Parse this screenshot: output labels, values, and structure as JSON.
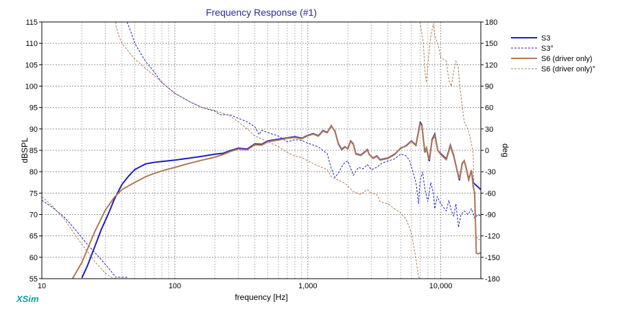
{
  "app": {
    "brand": "XSim"
  },
  "chart_data": {
    "type": "line",
    "title": "Frequency Response (#1)",
    "xlabel": "frequency [Hz]",
    "ylabel": "dBSPL",
    "y2label": "deg",
    "xscale": "log",
    "xlim": [
      10,
      20000
    ],
    "ylim": [
      55,
      115
    ],
    "y2lim": [
      -180,
      180
    ],
    "grid": true,
    "legend_position": "right",
    "x_ticks": [
      {
        "value": 10,
        "label": "10"
      },
      {
        "value": 100,
        "label": "100"
      },
      {
        "value": 1000,
        "label": "1,000"
      },
      {
        "value": 10000,
        "label": "10,000"
      }
    ],
    "y_ticks": [
      "55",
      "60",
      "65",
      "70",
      "75",
      "80",
      "85",
      "90",
      "95",
      "100",
      "105",
      "110",
      "115"
    ],
    "y2_ticks": [
      "-180",
      "-150",
      "-120",
      "-90",
      "-60",
      "-30",
      "0",
      "30",
      "60",
      "90",
      "120",
      "150",
      "180"
    ],
    "colors": {
      "s3": "#1c1cc0",
      "s6": "#b07850",
      "grid_major": "#909090",
      "grid_minor": "#b8b8b8",
      "title": "#2a2aa0",
      "brand": "#1a9a9a"
    },
    "series": [
      {
        "name": "S3",
        "axis": "dB",
        "style": "solid",
        "points": [
          [
            20,
            55.2
          ],
          [
            22,
            58
          ],
          [
            25,
            62.5
          ],
          [
            28,
            66.5
          ],
          [
            32,
            70.5
          ],
          [
            35,
            73.5
          ],
          [
            40,
            77
          ],
          [
            45,
            79
          ],
          [
            50,
            80.5
          ],
          [
            60,
            81.8
          ],
          [
            70,
            82.2
          ],
          [
            80,
            82.4
          ],
          [
            100,
            82.7
          ],
          [
            130,
            83.2
          ],
          [
            160,
            83.6
          ],
          [
            200,
            84.1
          ],
          [
            230,
            84.3
          ],
          [
            260,
            84.9
          ],
          [
            300,
            85.5
          ],
          [
            350,
            85.3
          ],
          [
            400,
            86.5
          ],
          [
            450,
            86.4
          ],
          [
            500,
            87.2
          ],
          [
            600,
            87.6
          ],
          [
            700,
            87.9
          ],
          [
            800,
            88.2
          ],
          [
            900,
            87.8
          ],
          [
            1000,
            88.5
          ],
          [
            1100,
            88.9
          ],
          [
            1200,
            88.4
          ],
          [
            1300,
            89.6
          ],
          [
            1400,
            89.2
          ],
          [
            1500,
            90.7
          ],
          [
            1600,
            89.5
          ],
          [
            1700,
            86.5
          ],
          [
            1800,
            85.2
          ],
          [
            1900,
            85.8
          ],
          [
            2000,
            85.4
          ],
          [
            2100,
            87.2
          ],
          [
            2200,
            86.5
          ],
          [
            2300,
            84.2
          ],
          [
            2500,
            83.9
          ],
          [
            2700,
            84.7
          ],
          [
            2800,
            85.2
          ],
          [
            2900,
            84
          ],
          [
            3100,
            83.2
          ],
          [
            3300,
            83.7
          ],
          [
            3500,
            82.8
          ],
          [
            4000,
            83.2
          ],
          [
            4500,
            84.1
          ],
          [
            5000,
            85.5
          ],
          [
            5500,
            86.1
          ],
          [
            6000,
            87.2
          ],
          [
            6500,
            86.2
          ],
          [
            6800,
            89.5
          ],
          [
            7000,
            91.5
          ],
          [
            7200,
            91
          ],
          [
            7400,
            87.5
          ],
          [
            7600,
            84.5
          ],
          [
            7800,
            85.5
          ],
          [
            8200,
            82.5
          ],
          [
            8600,
            87.5
          ],
          [
            9000,
            88.8
          ],
          [
            9500,
            85
          ],
          [
            10000,
            84.2
          ],
          [
            11000,
            83
          ],
          [
            11800,
            86.2
          ],
          [
            12500,
            83.8
          ],
          [
            13000,
            81.5
          ],
          [
            13800,
            78
          ],
          [
            14500,
            82
          ],
          [
            15000,
            82.5
          ],
          [
            15500,
            81
          ],
          [
            16200,
            78.2
          ],
          [
            17000,
            80.3
          ],
          [
            17500,
            77.5
          ],
          [
            20000,
            75.8
          ]
        ]
      },
      {
        "name": "S3°",
        "axis": "deg",
        "style": "dashed",
        "points": [
          [
            10,
            -70
          ],
          [
            12,
            -80
          ],
          [
            15,
            -95
          ],
          [
            18,
            -112
          ],
          [
            22,
            -132
          ],
          [
            27,
            -150
          ],
          [
            32,
            -166
          ],
          [
            36,
            -178
          ],
          [
            44,
            -178
          ],
          [
            44,
            178
          ],
          [
            46,
            170
          ],
          [
            50,
            150
          ],
          [
            60,
            125
          ],
          [
            70,
            110
          ],
          [
            80,
            95
          ],
          [
            100,
            80
          ],
          [
            130,
            68
          ],
          [
            160,
            60
          ],
          [
            200,
            55
          ],
          [
            220,
            50
          ],
          [
            260,
            50
          ],
          [
            300,
            45
          ],
          [
            350,
            40
          ],
          [
            400,
            33
          ],
          [
            430,
            22
          ],
          [
            450,
            28
          ],
          [
            500,
            25
          ],
          [
            600,
            20
          ],
          [
            700,
            12
          ],
          [
            800,
            15
          ],
          [
            900,
            14
          ],
          [
            1000,
            10
          ],
          [
            1200,
            5
          ],
          [
            1400,
            -5
          ],
          [
            1500,
            -25
          ],
          [
            1600,
            -38
          ],
          [
            1700,
            -32
          ],
          [
            1800,
            -23
          ],
          [
            1900,
            -17
          ],
          [
            2000,
            -15
          ],
          [
            2100,
            -25
          ],
          [
            2200,
            -35
          ],
          [
            2400,
            -24
          ],
          [
            2600,
            -26
          ],
          [
            2800,
            -20
          ],
          [
            3000,
            -27
          ],
          [
            3300,
            -24
          ],
          [
            3600,
            -18
          ],
          [
            4000,
            -15
          ],
          [
            4500,
            -12
          ],
          [
            5000,
            -5
          ],
          [
            5500,
            -8
          ],
          [
            5800,
            -14
          ],
          [
            6000,
            -22
          ],
          [
            6500,
            -45
          ],
          [
            6800,
            -75
          ],
          [
            7000,
            -42
          ],
          [
            7300,
            -30
          ],
          [
            7600,
            -55
          ],
          [
            8000,
            -72
          ],
          [
            8400,
            -45
          ],
          [
            8800,
            -60
          ],
          [
            9000,
            -82
          ],
          [
            9400,
            -65
          ],
          [
            10000,
            -75
          ],
          [
            11000,
            -85
          ],
          [
            11500,
            -70
          ],
          [
            12000,
            -85
          ],
          [
            12500,
            -92
          ],
          [
            13000,
            -75
          ],
          [
            13600,
            -108
          ],
          [
            14200,
            -90
          ],
          [
            15000,
            -85
          ],
          [
            16000,
            -90
          ],
          [
            17000,
            -82
          ],
          [
            18000,
            -95
          ],
          [
            19000,
            -90
          ],
          [
            20000,
            -92
          ]
        ]
      },
      {
        "name": "S6 (driver only)",
        "axis": "dB",
        "style": "solid",
        "points": [
          [
            17,
            55
          ],
          [
            20,
            58.8
          ],
          [
            25,
            66
          ],
          [
            30,
            71
          ],
          [
            35,
            74
          ],
          [
            40,
            75.8
          ],
          [
            50,
            77.5
          ],
          [
            60,
            78.8
          ],
          [
            70,
            79.6
          ],
          [
            80,
            80.2
          ],
          [
            100,
            81
          ],
          [
            130,
            82
          ],
          [
            160,
            82.7
          ],
          [
            200,
            83.4
          ],
          [
            230,
            84
          ],
          [
            260,
            84.7
          ],
          [
            300,
            85.3
          ],
          [
            350,
            85.1
          ],
          [
            400,
            86.3
          ],
          [
            450,
            86.2
          ],
          [
            500,
            87
          ],
          [
            600,
            87.4
          ],
          [
            700,
            87.8
          ],
          [
            800,
            88
          ],
          [
            900,
            87.7
          ],
          [
            1000,
            88.4
          ],
          [
            1100,
            88.8
          ],
          [
            1200,
            88.3
          ],
          [
            1300,
            89.5
          ],
          [
            1400,
            89.1
          ],
          [
            1500,
            90.8
          ],
          [
            1600,
            89.4
          ],
          [
            1700,
            86.6
          ],
          [
            1800,
            85.3
          ],
          [
            1900,
            85.9
          ],
          [
            2000,
            85.3
          ],
          [
            2100,
            87.1
          ],
          [
            2200,
            86.4
          ],
          [
            2300,
            84.1
          ],
          [
            2500,
            83.8
          ],
          [
            2700,
            84.6
          ],
          [
            2800,
            85.1
          ],
          [
            2900,
            84
          ],
          [
            3100,
            83.1
          ],
          [
            3300,
            83.6
          ],
          [
            3500,
            82.7
          ],
          [
            4000,
            83.1
          ],
          [
            4500,
            84
          ],
          [
            5000,
            85.6
          ],
          [
            5500,
            86
          ],
          [
            6000,
            87.1
          ],
          [
            6500,
            86.1
          ],
          [
            6800,
            89.3
          ],
          [
            7000,
            91.2
          ],
          [
            7200,
            90.8
          ],
          [
            7400,
            87.4
          ],
          [
            7600,
            84.6
          ],
          [
            7800,
            85.6
          ],
          [
            8200,
            82.8
          ],
          [
            8600,
            87.3
          ],
          [
            9000,
            88.5
          ],
          [
            9500,
            85
          ],
          [
            10000,
            84
          ],
          [
            11000,
            82.8
          ],
          [
            11800,
            86
          ],
          [
            12500,
            83.6
          ],
          [
            13000,
            81.4
          ],
          [
            13800,
            78.3
          ],
          [
            14500,
            81.9
          ],
          [
            15000,
            82.6
          ],
          [
            15500,
            81
          ],
          [
            16200,
            78
          ],
          [
            17000,
            80.4
          ],
          [
            17500,
            76.5
          ],
          [
            18000,
            75
          ],
          [
            18500,
            61
          ],
          [
            19000,
            60.8
          ],
          [
            20000,
            61
          ]
        ]
      },
      {
        "name": "S6 (driver only)°",
        "axis": "deg",
        "style": "dashed",
        "points": [
          [
            10,
            -65
          ],
          [
            12,
            -78
          ],
          [
            15,
            -98
          ],
          [
            18,
            -120
          ],
          [
            22,
            -142
          ],
          [
            26,
            -160
          ],
          [
            30,
            -172
          ],
          [
            33,
            -178
          ],
          [
            36,
            175
          ],
          [
            38,
            160
          ],
          [
            40,
            150
          ],
          [
            50,
            128
          ],
          [
            60,
            115
          ],
          [
            70,
            105
          ],
          [
            80,
            95
          ],
          [
            100,
            80
          ],
          [
            130,
            68
          ],
          [
            160,
            60
          ],
          [
            200,
            56
          ],
          [
            230,
            52
          ],
          [
            260,
            48
          ],
          [
            300,
            40
          ],
          [
            350,
            30
          ],
          [
            400,
            20
          ],
          [
            500,
            12
          ],
          [
            600,
            5
          ],
          [
            700,
            -3
          ],
          [
            800,
            -8
          ],
          [
            900,
            -10
          ],
          [
            1000,
            -15
          ],
          [
            1200,
            -22
          ],
          [
            1400,
            -27
          ],
          [
            1500,
            -37
          ],
          [
            1700,
            -42
          ],
          [
            1900,
            -46
          ],
          [
            2200,
            -58
          ],
          [
            2500,
            -62
          ],
          [
            2800,
            -55
          ],
          [
            3000,
            -60
          ],
          [
            3300,
            -62
          ],
          [
            3500,
            -72
          ],
          [
            4000,
            -75
          ],
          [
            4500,
            -82
          ],
          [
            5000,
            -88
          ],
          [
            5500,
            -97
          ],
          [
            6000,
            -115
          ],
          [
            6500,
            -152
          ],
          [
            6800,
            -178
          ],
          [
            7000,
            178
          ],
          [
            7400,
            150
          ],
          [
            7600,
            110
          ],
          [
            7800,
            95
          ],
          [
            8000,
            120
          ],
          [
            8400,
            160
          ],
          [
            8800,
            178
          ],
          [
            9000,
            160
          ],
          [
            9500,
            150
          ],
          [
            10000,
            130
          ],
          [
            11000,
            125
          ],
          [
            11500,
            98
          ],
          [
            12000,
            90
          ],
          [
            12500,
            110
          ],
          [
            13000,
            125
          ],
          [
            13500,
            118
          ],
          [
            14000,
            85
          ],
          [
            14500,
            62
          ],
          [
            15000,
            40
          ],
          [
            16000,
            30
          ],
          [
            17000,
            10
          ],
          [
            17500,
            -5
          ],
          [
            18000,
            -90
          ],
          [
            18500,
            -120
          ],
          [
            19000,
            -125
          ],
          [
            20000,
            -125
          ]
        ]
      }
    ]
  }
}
